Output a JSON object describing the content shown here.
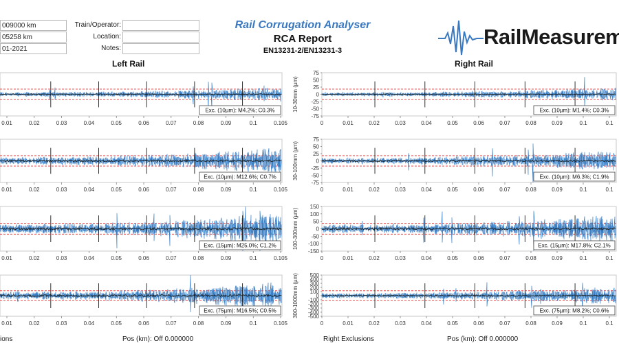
{
  "header": {
    "left_fields": [
      "009000 km",
      "05258 km",
      "01-2021"
    ],
    "operator_labels": [
      "Train/Operator:",
      "Location:",
      "Notes:"
    ],
    "operator_values": [
      "",
      "",
      ""
    ],
    "app_title": "Rail Corrugation Analyser",
    "report_title": "RCA Report",
    "report_standard": "EN13231-2/EN13231-3",
    "logo_text": "RailMeasureme",
    "brand_color": "#3a78c0"
  },
  "rails": [
    {
      "title": "Left Rail",
      "plots": [
        {
          "ylabel": "",
          "yticks": [],
          "xticks": [
            "0.01",
            "0.02",
            "0.03",
            "0.04",
            "0.05",
            "0.06",
            "0.07",
            "0.08",
            "0.09",
            "0.1",
            "0.105"
          ],
          "exc": "Exc. (10µm): M4.2%; C0.3%",
          "amp": 0.28
        },
        {
          "ylabel": "",
          "yticks": [],
          "xticks": [
            "0.01",
            "0.02",
            "0.03",
            "0.04",
            "0.05",
            "0.06",
            "0.07",
            "0.08",
            "0.09",
            "0.1",
            "0.105"
          ],
          "exc": "Exc. (10µm): M12.6%; C0.7%",
          "amp": 0.5
        },
        {
          "ylabel": "",
          "yticks": [],
          "xticks": [
            "0.01",
            "0.02",
            "0.03",
            "0.04",
            "0.05",
            "0.06",
            "0.07",
            "0.08",
            "0.09",
            "0.1",
            "0.105"
          ],
          "exc": "Exc. (15µm): M25.0%; C1.2%",
          "amp": 0.6
        },
        {
          "ylabel": "",
          "yticks": [],
          "xticks": [
            "0.01",
            "0.02",
            "0.03",
            "0.04",
            "0.05",
            "0.06",
            "0.07",
            "0.08",
            "0.09",
            "0.1",
            "0.105"
          ],
          "exc": "Exc. (75µm): M16.5%; C0.5%",
          "amp": 0.55
        }
      ],
      "exclusions_label": "ions",
      "pos_label": "Pos (km): Off 0.000000"
    },
    {
      "title": "Right Rail",
      "plots": [
        {
          "ylabel": "10-30mm (µm)",
          "yticks": [
            "75",
            "50",
            "25",
            "0",
            "-25",
            "-50",
            "-75"
          ],
          "xticks": [
            "0",
            "0.01",
            "0.02",
            "0.03",
            "0.04",
            "0.05",
            "0.06",
            "0.07",
            "0.08",
            "0.09",
            "0.1",
            "0.1"
          ],
          "exc": "Exc. (10µm): M1.4%; C0.3%",
          "amp": 0.25
        },
        {
          "ylabel": "30-100mm (µm)",
          "yticks": [
            "75",
            "50",
            "25",
            "0",
            "-25",
            "-50",
            "-75"
          ],
          "xticks": [
            "0",
            "0.01",
            "0.02",
            "0.03",
            "0.04",
            "0.05",
            "0.06",
            "0.07",
            "0.08",
            "0.09",
            "0.1",
            "0.1"
          ],
          "exc": "Exc. (10µm): M6.3%; C1.9%",
          "amp": 0.4
        },
        {
          "ylabel": "100-300mm (µm)",
          "yticks": [
            "150",
            "100",
            "50",
            "0",
            "-50",
            "-100",
            "-150"
          ],
          "xticks": [
            "0",
            "0.01",
            "0.02",
            "0.03",
            "0.04",
            "0.05",
            "0.06",
            "0.07",
            "0.08",
            "0.09",
            "0.1",
            "0.1"
          ],
          "exc": "Exc. (15µm): M17.8%; C2.1%",
          "amp": 0.55
        },
        {
          "ylabel": "300-1000mm (µm)",
          "yticks": [
            "500",
            "400",
            "300",
            "200",
            "100",
            "0",
            "-100",
            "-200",
            "-300",
            "-400",
            "-500"
          ],
          "xticks": [
            "0",
            "0.01",
            "0.02",
            "0.03",
            "0.04",
            "0.05",
            "0.06",
            "0.07",
            "0.08",
            "0.09",
            "0.1",
            "0.1"
          ],
          "exc": "Exc. (75µm): M8.2%; C0.6%",
          "amp": 0.35
        }
      ],
      "exclusions_label": "Right Exclusions",
      "pos_label": "Pos (km): Off 0.000000"
    }
  ],
  "colors": {
    "signal": "#3a7fc4",
    "mean": "#1a1a1a",
    "threshold": "#e03030",
    "zero": "#6a9a50"
  }
}
